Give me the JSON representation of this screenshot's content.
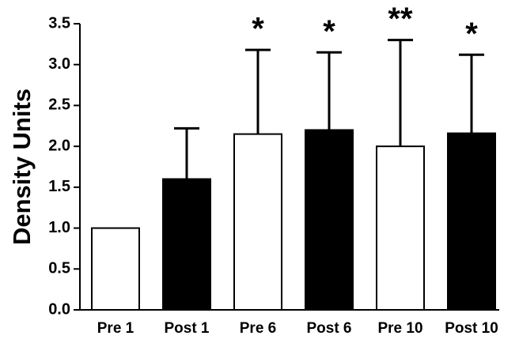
{
  "chart_data": {
    "type": "bar",
    "y_label": "Density Units",
    "categories": [
      "Pre 1",
      "Post 1",
      "Pre 6",
      "Post 6",
      "Pre 10",
      "Post 10"
    ],
    "values": [
      1.0,
      1.6,
      2.15,
      2.2,
      2.0,
      2.16
    ],
    "errors": [
      null,
      0.62,
      1.03,
      0.95,
      1.3,
      0.96
    ],
    "colors": [
      "#ffffff",
      "#000000",
      "#ffffff",
      "#000000",
      "#ffffff",
      "#000000"
    ],
    "annotations": [
      null,
      null,
      "*",
      "*",
      "**",
      "*"
    ],
    "ylim": [
      0,
      3.5
    ],
    "yticks": [
      {
        "value": 0,
        "label": "0.0"
      },
      {
        "value": 0.5,
        "label": "0.5"
      },
      {
        "value": 1,
        "label": "1.0"
      },
      {
        "value": 1.5,
        "label": "1.5"
      },
      {
        "value": 2,
        "label": "2.0"
      },
      {
        "value": 2.5,
        "label": "2.5"
      },
      {
        "value": 3,
        "label": "3.0"
      },
      {
        "value": 3.5,
        "label": "3.5"
      }
    ]
  }
}
